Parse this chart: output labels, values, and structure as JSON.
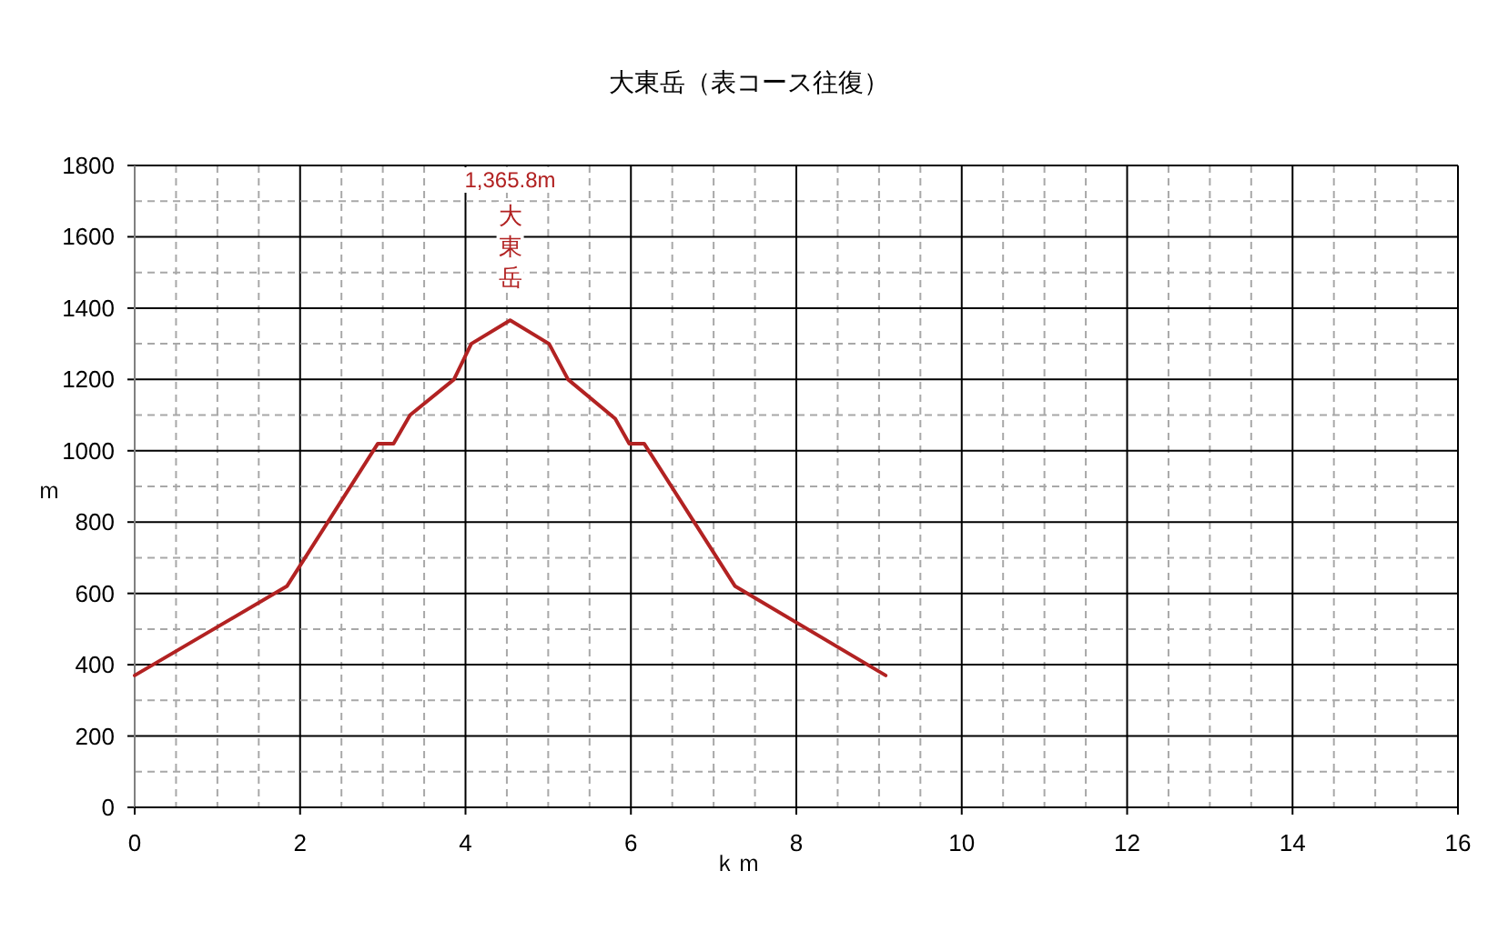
{
  "chart_data": {
    "type": "line",
    "title": "大東岳（表コース往復）",
    "xlabel": "ｋｍ",
    "ylabel": "ｍ",
    "x": [
      0,
      1.84,
      2.94,
      3.13,
      3.33,
      3.86,
      4.07,
      4.54,
      5.01,
      5.24,
      5.81,
      5.98,
      6.16,
      7.26,
      9.08
    ],
    "series": [
      {
        "color": "#b22222",
        "values": [
          370,
          620,
          1020,
          1020,
          1100,
          1200,
          1300,
          1365.8,
          1300,
          1200,
          1090,
          1020,
          1020,
          620,
          370
        ]
      }
    ],
    "xlim": [
      0,
      16
    ],
    "xticks": [
      0,
      {
        "value": 0.5,
        "label": null
      },
      {
        "value": 1,
        "label": null
      },
      {
        "value": 1.5,
        "label": null
      },
      2,
      {
        "value": 2.5,
        "label": null
      },
      {
        "value": 3,
        "label": null
      },
      {
        "value": 3.5,
        "label": null
      },
      4,
      {
        "value": 4.5,
        "label": null
      },
      {
        "value": 5,
        "label": null
      },
      {
        "value": 5.5,
        "label": null
      },
      6,
      {
        "value": 6.5,
        "label": null
      },
      {
        "value": 7,
        "label": null
      },
      {
        "value": 7.5,
        "label": null
      },
      8,
      {
        "value": 8.5,
        "label": null
      },
      {
        "value": 9,
        "label": null
      },
      {
        "value": 9.5,
        "label": null
      },
      10,
      {
        "value": 10.5,
        "label": null
      },
      {
        "value": 11,
        "label": null
      },
      {
        "value": 11.5,
        "label": null
      },
      12,
      {
        "value": 12.5,
        "label": null
      },
      {
        "value": 13,
        "label": null
      },
      {
        "value": 13.5,
        "label": null
      },
      14,
      {
        "value": 14.5,
        "label": null
      },
      {
        "value": 15,
        "label": null
      },
      {
        "value": 15.5,
        "label": null
      },
      16
    ],
    "ylim": [
      0,
      1800
    ],
    "yticks": [
      0,
      {
        "value": 100,
        "label": null
      },
      200,
      {
        "value": 300,
        "label": null
      },
      400,
      {
        "value": 500,
        "label": null
      },
      600,
      {
        "value": 700,
        "label": null
      },
      800,
      {
        "value": 900,
        "label": null
      },
      1000,
      {
        "value": 1100,
        "label": null
      },
      1200,
      {
        "value": 1300,
        "label": null
      },
      1400,
      {
        "value": 1500,
        "label": null
      },
      1600,
      {
        "value": 1700,
        "label": null
      },
      1800
    ],
    "grid": true,
    "line_style": "solid",
    "annotations": [
      "1,365.8m",
      "大東岳"
    ]
  }
}
